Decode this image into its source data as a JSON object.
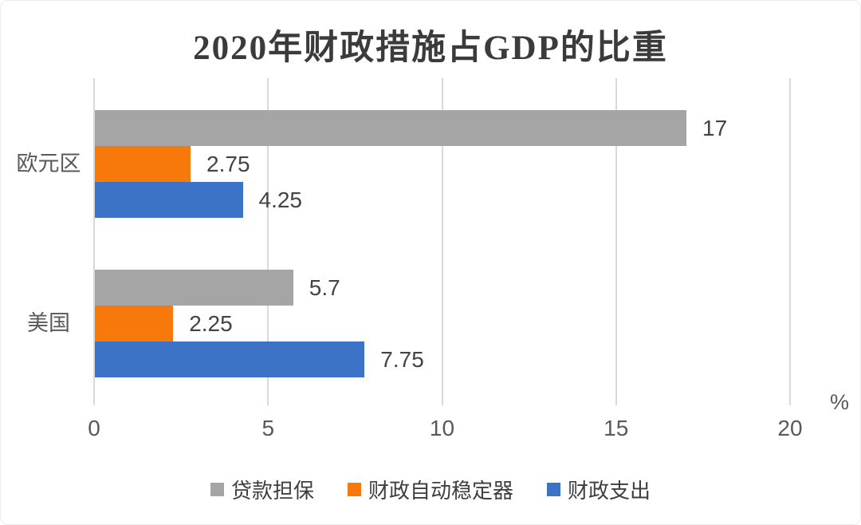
{
  "title": "2020年财政措施占GDP的比重",
  "chart_data": {
    "type": "bar",
    "orientation": "horizontal",
    "title": "2020年财政措施占GDP的比重",
    "categories": [
      "欧元区",
      "美国"
    ],
    "series": [
      {
        "key": "loan-guarantee",
        "name": "贷款担保",
        "color": "#a5a5a5",
        "values": [
          17,
          5.7
        ]
      },
      {
        "key": "automatic-stabilizers",
        "name": "财政自动稳定器",
        "color": "#f8790b",
        "values": [
          2.75,
          2.25
        ]
      },
      {
        "key": "fiscal-spending",
        "name": "财政支出",
        "color": "#3d73c6",
        "values": [
          4.25,
          7.75
        ]
      }
    ],
    "x_ticks": [
      "0",
      "5",
      "10",
      "15",
      "20"
    ],
    "x_tick_values": [
      0,
      5,
      10,
      15,
      20
    ],
    "xlim": [
      0,
      20
    ],
    "x_unit": "%",
    "grid": "vertical",
    "legend_position": "bottom",
    "data_labels_shown": true
  },
  "colors": {
    "gridline": "#d9d9d9",
    "title_text": "#3b3b3b",
    "value_label_text": "#434343",
    "axis_text": "#595959",
    "legend_text": "#3e3e3e"
  }
}
